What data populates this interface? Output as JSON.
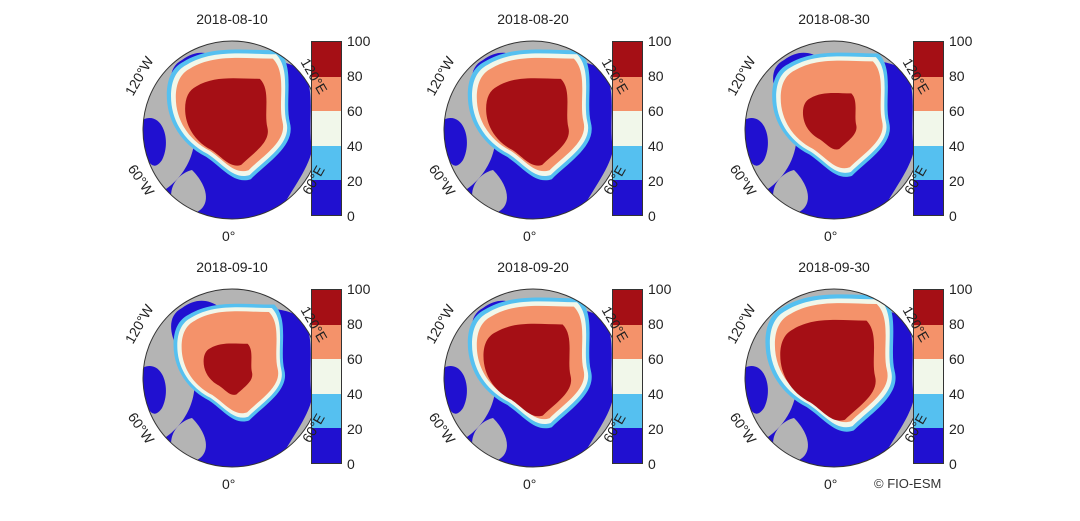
{
  "figure": {
    "panels": [
      {
        "title": "2018-08-10"
      },
      {
        "title": "2018-08-20"
      },
      {
        "title": "2018-08-30"
      },
      {
        "title": "2018-09-10"
      },
      {
        "title": "2018-09-20"
      },
      {
        "title": "2018-09-30"
      }
    ],
    "colorbar": {
      "ticks": [
        "100",
        "80",
        "60",
        "40",
        "20",
        "0"
      ],
      "colors": [
        "#a50f15",
        "#f4926a",
        "#f1f7ea",
        "#55c0f0",
        "#2010d0"
      ]
    },
    "longitude_labels": {
      "w120": "120°W",
      "w60": "60°W",
      "e120": "120°E",
      "e60": "60°E",
      "zero": "0°"
    },
    "land_color": "#b4b4b4",
    "copyright": "© FIO-ESM"
  }
}
